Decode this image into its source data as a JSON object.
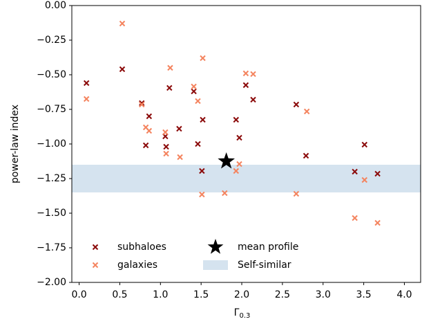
{
  "chart_data": {
    "type": "scatter",
    "xlabel": "Γ",
    "xlabel_sub": "0.3",
    "ylabel": "power-law index",
    "xlim": [
      -0.09,
      4.2
    ],
    "ylim": [
      -2,
      0
    ],
    "xticks": [
      {
        "value": 0,
        "label": "0.0"
      },
      {
        "value": 0.5,
        "label": "0.5"
      },
      {
        "value": 1,
        "label": "1.0"
      },
      {
        "value": 1.5,
        "label": "1.5"
      },
      {
        "value": 2,
        "label": "2.0"
      },
      {
        "value": 2.5,
        "label": "2.5"
      },
      {
        "value": 3,
        "label": "3.0"
      },
      {
        "value": 3.5,
        "label": "3.5"
      },
      {
        "value": 4,
        "label": "4.0"
      }
    ],
    "yticks": [
      {
        "value": -2,
        "label": "−2.00"
      },
      {
        "value": -1.75,
        "label": "−1.75"
      },
      {
        "value": -1.5,
        "label": "−1.50"
      },
      {
        "value": -1.25,
        "label": "−1.25"
      },
      {
        "value": -1,
        "label": "−1.00"
      },
      {
        "value": -0.75,
        "label": "−0.75"
      },
      {
        "value": -0.5,
        "label": "−0.50"
      },
      {
        "value": -0.25,
        "label": "−0.25"
      },
      {
        "value": 0,
        "label": "0.00"
      }
    ],
    "bands": [
      {
        "name": "Self-similar",
        "y0": -1.35,
        "y1": -1.15,
        "color": "#d5e3ef"
      }
    ],
    "series": [
      {
        "name": "subhaloes",
        "color": "#8b0a0a",
        "marker": "x",
        "x": [
          0.09,
          0.53,
          0.77,
          0.86,
          0.82,
          1.06,
          1.07,
          1.11,
          1.23,
          1.41,
          1.46,
          1.52,
          1.51,
          1.93,
          1.97,
          2.05,
          2.14,
          2.67,
          2.79,
          3.39,
          3.51,
          3.67
        ],
        "values": [
          -0.56,
          -0.46,
          -0.705,
          -0.8,
          -1.01,
          -0.945,
          -1.02,
          -0.595,
          -0.89,
          -0.62,
          -1.0,
          -0.825,
          -1.195,
          -0.825,
          -0.955,
          -0.575,
          -0.68,
          -0.715,
          -1.085,
          -1.2,
          -1.005,
          -1.215
        ]
      },
      {
        "name": "galaxies",
        "color": "#f4845f",
        "marker": "x",
        "x": [
          0.09,
          0.53,
          0.77,
          0.82,
          0.86,
          1.06,
          1.07,
          1.12,
          1.24,
          1.41,
          1.46,
          1.52,
          1.51,
          1.79,
          1.93,
          1.97,
          2.05,
          2.14,
          2.67,
          2.8,
          3.39,
          3.51,
          3.67
        ],
        "values": [
          -0.675,
          -0.13,
          -0.715,
          -0.88,
          -0.905,
          -0.915,
          -1.07,
          -0.45,
          -1.095,
          -0.585,
          -0.69,
          -0.38,
          -1.365,
          -1.355,
          -1.195,
          -1.145,
          -0.49,
          -0.495,
          -1.36,
          -0.765,
          -1.535,
          -1.26,
          -1.57
        ]
      },
      {
        "name": "mean profile",
        "color": "#000000",
        "marker": "star",
        "x": [
          1.81
        ],
        "values": [
          -1.125
        ]
      }
    ]
  }
}
